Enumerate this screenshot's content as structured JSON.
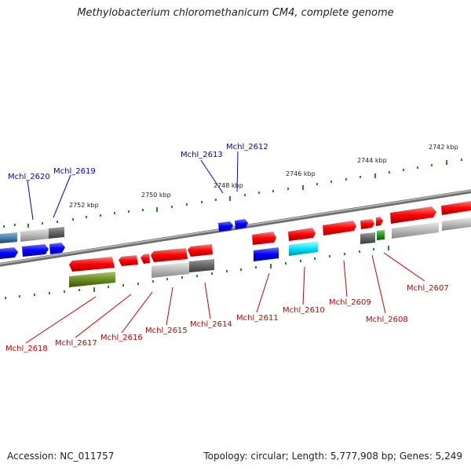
{
  "title": "Methylobacterium chloromethanicum CM4, complete genome",
  "footer": {
    "accession": "Accession: NC_011757",
    "summary": "Topology: circular; Length: 5,777,908 bp; Genes: 5,249"
  },
  "scale_labels": [
    "2742 kbp",
    "2744 kbp",
    "2746 kbp",
    "2748 kbp",
    "2750 kbp",
    "2752 kbp"
  ],
  "genes_top": [
    "Mchl_2612",
    "Mchl_2613",
    "Mchl_2619",
    "Mchl_2620"
  ],
  "genes_bottom": [
    "Mchl_2607",
    "Mchl_2608",
    "Mchl_2609",
    "Mchl_2610",
    "Mchl_2611",
    "Mchl_2614",
    "Mchl_2615",
    "Mchl_2616",
    "Mchl_2617",
    "Mchl_2618"
  ],
  "colors": {
    "backbone": "#808080",
    "gene_red": "#ff0000",
    "gene_blue": "#0000ff",
    "gene_cyan": "#00e5ff",
    "gene_olive": "#6b8e23",
    "gene_gray": "#b0b0b0",
    "gene_darkgray": "#666666",
    "gene_green": "#1f9e1f",
    "tick_green": "#228b22",
    "label_blue": "#0000cc",
    "label_red": "#cc0000"
  }
}
